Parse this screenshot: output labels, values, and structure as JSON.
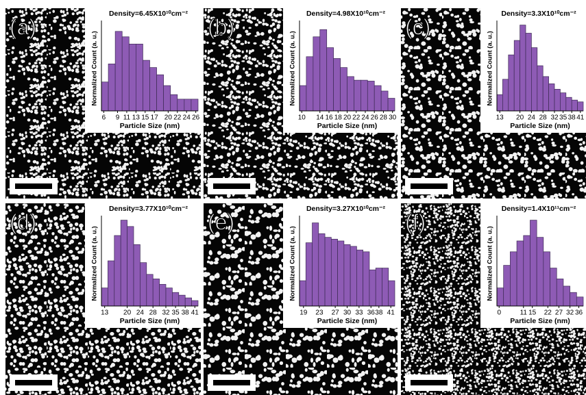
{
  "chart_data": [
    {
      "type": "histogram",
      "label": "(a)",
      "title": "Density=6.45X10¹⁰cm⁻²",
      "x_label": "Particle Size (nm)",
      "y_label": "Normalized Count (a. u.)",
      "bins": [
        5.5,
        7,
        8.5,
        10,
        11.5,
        13,
        14.5,
        16,
        17.5,
        19,
        20.5,
        22,
        23.5,
        25,
        26.5
      ],
      "values": [
        32,
        52,
        88,
        82,
        74,
        74,
        56,
        48,
        40,
        28,
        18,
        13,
        13,
        13
      ],
      "xlim": [
        5.5,
        26.5
      ],
      "xticks": [
        6,
        9,
        11,
        13,
        15,
        17,
        20,
        22,
        24,
        26
      ],
      "ylim": [
        0,
        100
      ],
      "color": "#8e5bb5"
    },
    {
      "type": "histogram",
      "label": "(b)",
      "title": "Density=4.98X10¹⁰cm⁻²",
      "x_label": "Particle Size (nm)",
      "y_label": "Normalized Count (a. u.)",
      "bins": [
        9.5,
        11,
        12.5,
        14,
        15.5,
        17,
        18.5,
        20,
        21.5,
        23,
        24.5,
        26,
        27.5,
        29,
        30.5
      ],
      "values": [
        28,
        60,
        82,
        90,
        70,
        58,
        48,
        38,
        34,
        34,
        33,
        28,
        22,
        14
      ],
      "xlim": [
        9.5,
        30.5
      ],
      "xticks": [
        10,
        14,
        16,
        18,
        20,
        22,
        24,
        26,
        28,
        30
      ],
      "ylim": [
        0,
        100
      ],
      "color": "#8e5bb5"
    },
    {
      "type": "histogram",
      "label": "(c)",
      "title": "Density=3.3X10¹⁰cm⁻²",
      "x_label": "Particle Size (nm)",
      "y_label": "Normalized Count (a. u.)",
      "bins": [
        12,
        14,
        16,
        18,
        20,
        22,
        24,
        26,
        28,
        30,
        32,
        34,
        36,
        38,
        40,
        42
      ],
      "values": [
        18,
        35,
        62,
        78,
        95,
        86,
        70,
        50,
        38,
        30,
        24,
        20,
        15,
        12,
        10
      ],
      "xlim": [
        12,
        42
      ],
      "xticks": [
        13,
        20,
        24,
        28,
        32,
        35,
        38,
        41
      ],
      "ylim": [
        0,
        100
      ],
      "color": "#8e5bb5"
    },
    {
      "type": "histogram",
      "label": "(d)",
      "title": "Density=3.77X10¹⁰cm⁻²",
      "x_label": "Particle Size (nm)",
      "y_label": "Normalized Count (a. u.)",
      "bins": [
        12,
        14,
        16,
        18,
        20,
        22,
        24,
        26,
        28,
        30,
        32,
        34,
        36,
        38,
        40,
        42
      ],
      "values": [
        20,
        50,
        78,
        95,
        88,
        68,
        48,
        35,
        30,
        24,
        20,
        15,
        12,
        9,
        6
      ],
      "xlim": [
        12,
        42
      ],
      "xticks": [
        13,
        20,
        24,
        28,
        32,
        35,
        38,
        41
      ],
      "ylim": [
        0,
        100
      ],
      "color": "#8e5bb5"
    },
    {
      "type": "histogram",
      "label": "(e)",
      "title": "Density=3.27X10¹⁰cm⁻²",
      "x_label": "Particle Size (nm)",
      "y_label": "Normalized Count (a. u.)",
      "bins": [
        18,
        19.6,
        21.2,
        22.8,
        24.4,
        26,
        27.6,
        29.2,
        30.8,
        32.4,
        34,
        35.6,
        37.2,
        38.8,
        40.4,
        42
      ],
      "values": [
        28,
        70,
        92,
        80,
        76,
        74,
        72,
        68,
        66,
        62,
        60,
        40,
        42,
        42,
        28
      ],
      "xlim": [
        18,
        42
      ],
      "xticks": [
        19,
        23,
        27,
        30,
        33,
        36,
        38,
        41
      ],
      "ylim": [
        0,
        100
      ],
      "color": "#8e5bb5"
    },
    {
      "type": "histogram",
      "label": "(f)",
      "title": "Density=1.4X10¹¹cm⁻²",
      "x_label": "Particle Size (nm)",
      "y_label": "Normalized Count (a. u.)",
      "bins": [
        -1,
        2,
        5,
        8,
        11,
        14,
        17,
        20,
        23,
        26,
        29,
        32,
        35,
        38
      ],
      "values": [
        20,
        45,
        60,
        72,
        78,
        95,
        76,
        60,
        42,
        30,
        22,
        15,
        10
      ],
      "xlim": [
        -1,
        38
      ],
      "xticks": [
        0,
        11,
        15,
        22,
        27,
        32,
        36
      ],
      "ylim": [
        0,
        100
      ],
      "color": "#8e5bb5"
    }
  ]
}
